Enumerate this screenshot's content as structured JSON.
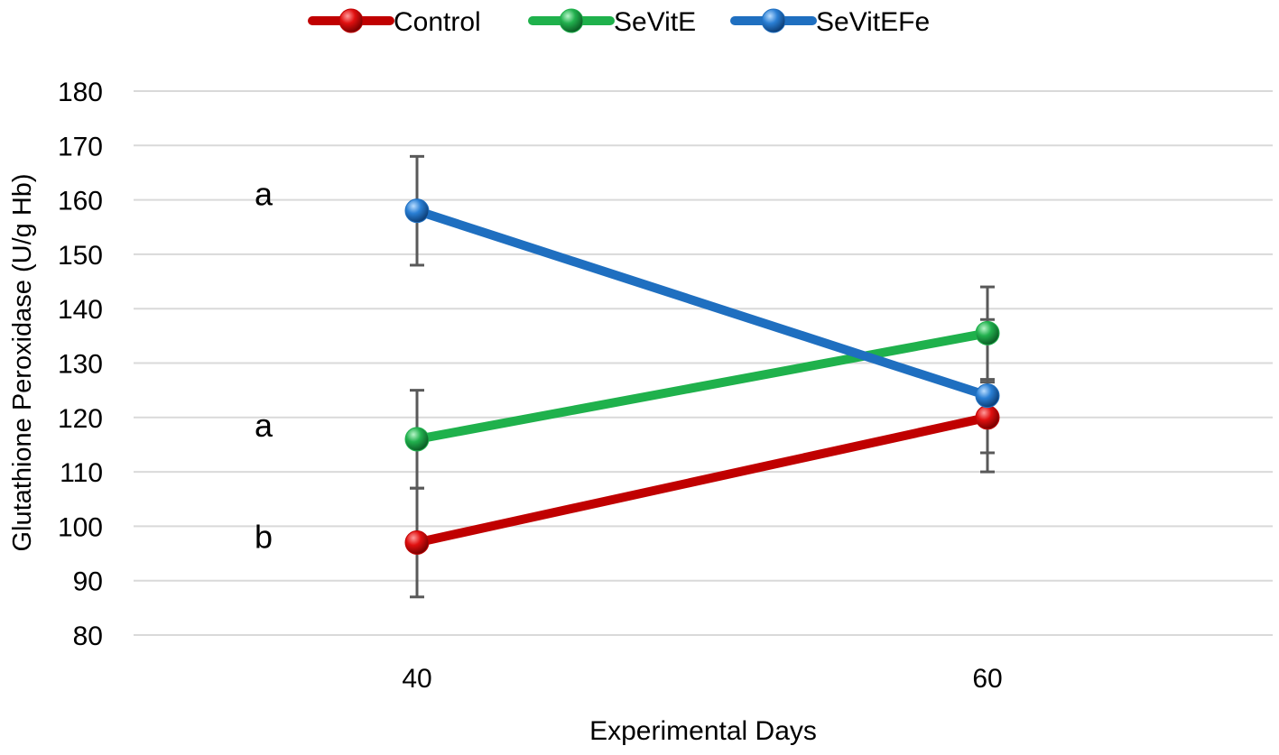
{
  "chart_data": {
    "type": "line",
    "title": "",
    "xlabel": "Experimental Days",
    "ylabel": "Glutathione Peroxidase (U/g Hb)",
    "categories": [
      "40",
      "60"
    ],
    "ylim": [
      80,
      180
    ],
    "yticks": [
      80,
      90,
      100,
      110,
      120,
      130,
      140,
      150,
      160,
      170,
      180
    ],
    "grid": true,
    "legend_position": "top-center",
    "series": [
      {
        "name": "Control",
        "color": "#c00000",
        "values": [
          97,
          120
        ],
        "errors": [
          10,
          6.5
        ]
      },
      {
        "name": "SeVitE",
        "color": "#1fb14c",
        "values": [
          116,
          135.5
        ],
        "errors": [
          9,
          8.5
        ]
      },
      {
        "name": "SeVitEFe",
        "color": "#1f6fc0",
        "values": [
          158,
          124
        ],
        "errors": [
          10,
          14
        ]
      }
    ],
    "annotations": [
      {
        "text": "a",
        "category": "40",
        "y": 161
      },
      {
        "text": "a",
        "category": "40",
        "y": 118.5
      },
      {
        "text": "b",
        "category": "40",
        "y": 98
      }
    ]
  }
}
